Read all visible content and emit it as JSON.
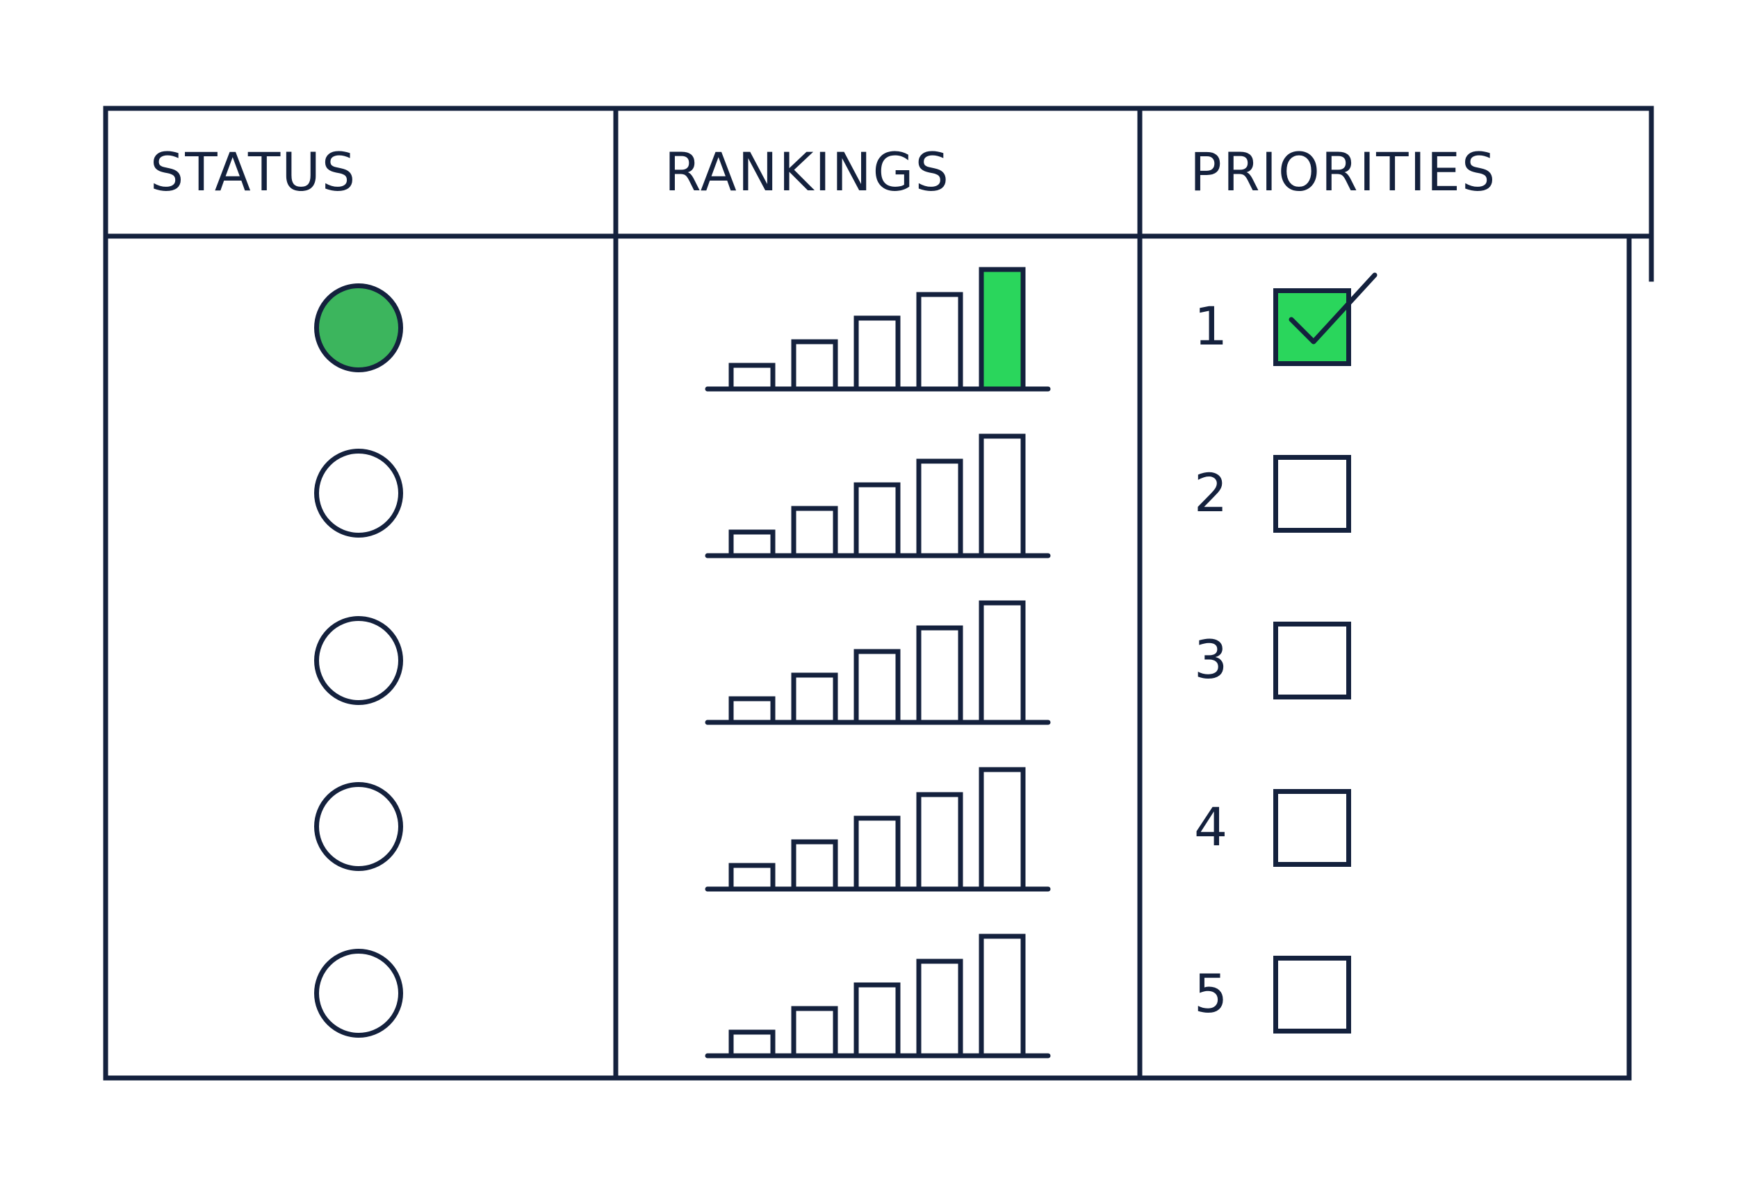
{
  "table": {
    "headers": {
      "status": "STATUS",
      "rankings": "RANKINGS",
      "priorities": "PRIORITIES"
    }
  },
  "colors": {
    "line": "#14213d",
    "status_selected": "#3cb55d",
    "accent_green": "#2ad65c",
    "background": "#ffffff"
  },
  "rows": [
    {
      "status_selected": true,
      "ranking_level": 5,
      "ranking_highlighted": true,
      "priority": "1",
      "priority_checked": true
    },
    {
      "status_selected": false,
      "ranking_level": 5,
      "ranking_highlighted": false,
      "priority": "2",
      "priority_checked": false
    },
    {
      "status_selected": false,
      "ranking_level": 5,
      "ranking_highlighted": false,
      "priority": "3",
      "priority_checked": false
    },
    {
      "status_selected": false,
      "ranking_level": 5,
      "ranking_highlighted": false,
      "priority": "4",
      "priority_checked": false
    },
    {
      "status_selected": false,
      "ranking_level": 5,
      "ranking_highlighted": false,
      "priority": "5",
      "priority_checked": false
    }
  ],
  "icons": {
    "status": "radio-circle-icon",
    "ranking": "signal-bars-icon",
    "priority_check": "check-icon"
  }
}
